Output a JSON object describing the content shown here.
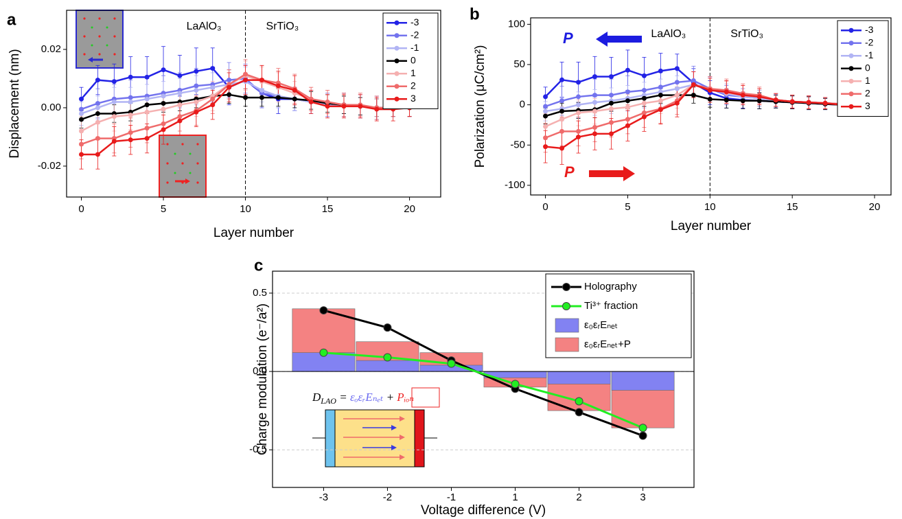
{
  "chart_data": [
    {
      "type": "line",
      "panel": "a",
      "xlabel": "Layer number",
      "ylabel": "Displacement (nm)",
      "regions": [
        "LaAlO₃",
        "SrTiO₃"
      ],
      "vline": 10,
      "x": [
        0,
        1,
        2,
        3,
        4,
        5,
        6,
        7,
        8,
        9,
        10,
        11,
        12,
        13,
        14,
        15,
        16,
        17,
        18,
        19,
        20
      ],
      "xlim": [
        -0.9,
        21.9
      ],
      "xticks": [
        0,
        5,
        10,
        15,
        20
      ],
      "ylim": [
        -0.0306,
        0.0334
      ],
      "yticks": [
        -0.02,
        {
          "value": 0,
          "label": "0.00"
        },
        0.02
      ],
      "legend": "upper right",
      "series": [
        {
          "name": "-3",
          "color": "#2323e6",
          "values": [
            0.003,
            0.0095,
            0.009,
            0.0105,
            0.0105,
            0.013,
            0.011,
            0.0125,
            0.0135,
            0.007,
            0.0095,
            0.005,
            0.003,
            0.003,
            0.002,
            0.001,
            0.001,
            0.0005,
            0,
            0,
            0
          ],
          "errors": [
            0.004,
            0.005,
            0.006,
            0.007,
            0.007,
            0.008,
            0.007,
            0.008,
            0.007,
            0.006,
            0.005,
            0.005,
            0.005,
            0.004,
            0.004,
            0.004,
            0.004,
            0.004,
            0.004,
            0.003,
            0.003
          ]
        },
        {
          "name": "-2",
          "color": "#7373ee",
          "values": [
            -0.0005,
            0.0015,
            0.003,
            0.0035,
            0.004,
            0.005,
            0.006,
            0.0075,
            0.008,
            0.0095,
            0.01,
            0.005,
            0.004,
            0.003,
            0.002,
            0.001,
            0.001,
            0.0005,
            0,
            0,
            0
          ],
          "errors": [
            0.004,
            0.005,
            0.005,
            0.006,
            0.006,
            0.006,
            0.006,
            0.006,
            0.006,
            0.006,
            0.005,
            0.005,
            0.004,
            0.004,
            0.004,
            0.004,
            0.004,
            0.003,
            0.003,
            0.003,
            0.003
          ]
        },
        {
          "name": "-1",
          "color": "#b1b4f4",
          "values": [
            -0.002,
            0,
            0.002,
            0.002,
            0.003,
            0.004,
            0.005,
            0.006,
            0.007,
            0.008,
            0.009,
            0.006,
            0.004,
            0.003,
            0.002,
            0.001,
            0.001,
            0.0005,
            0,
            0,
            0
          ],
          "errors": [
            0.004,
            0.004,
            0.005,
            0.005,
            0.005,
            0.005,
            0.005,
            0.005,
            0.005,
            0.005,
            0.005,
            0.004,
            0.004,
            0.004,
            0.004,
            0.004,
            0.003,
            0.003,
            0.003,
            0.003,
            0.003
          ]
        },
        {
          "name": "0",
          "color": "#000000",
          "values": [
            -0.004,
            -0.002,
            -0.002,
            -0.0015,
            0.001,
            0.0015,
            0.002,
            0.003,
            0.004,
            0.0045,
            0.0035,
            0.0035,
            0.0035,
            0.003,
            0.0025,
            0.0015,
            0.001,
            0.0005,
            0,
            0,
            0
          ],
          "errors": [
            0.003,
            0.003,
            0.003,
            0.003,
            0.003,
            0.003,
            0.003,
            0.003,
            0.003,
            0.003,
            0.003,
            0.003,
            0.003,
            0.003,
            0.003,
            0.003,
            0.003,
            0.003,
            0.003,
            0.003,
            0.003
          ]
        },
        {
          "name": "1",
          "color": "#f5b0b0",
          "values": [
            -0.008,
            -0.005,
            -0.003,
            -0.0025,
            -0.0015,
            -0.0005,
            0.001,
            0.002,
            0.004,
            0.008,
            0.011,
            0.009,
            0.007,
            0.005,
            0.003,
            0.002,
            0.001,
            0.0005,
            0,
            0,
            0
          ],
          "errors": [
            0.005,
            0.005,
            0.005,
            0.005,
            0.005,
            0.005,
            0.005,
            0.005,
            0.005,
            0.005,
            0.005,
            0.005,
            0.005,
            0.004,
            0.004,
            0.004,
            0.004,
            0.004,
            0.003,
            0.003,
            0.003
          ]
        },
        {
          "name": "2",
          "color": "#ef6b6b",
          "values": [
            -0.0125,
            -0.0105,
            -0.0105,
            -0.0085,
            -0.007,
            -0.0055,
            -0.003,
            -0.001,
            0.003,
            0.008,
            0.0115,
            0.0095,
            0.0085,
            0.0065,
            0.003,
            0.002,
            0.001,
            0.001,
            0,
            0,
            0
          ],
          "errors": [
            0.005,
            0.005,
            0.005,
            0.005,
            0.005,
            0.005,
            0.005,
            0.005,
            0.005,
            0.005,
            0.005,
            0.005,
            0.005,
            0.005,
            0.004,
            0.004,
            0.004,
            0.004,
            0.004,
            0.003,
            0.003
          ]
        },
        {
          "name": "3",
          "color": "#e81b1b",
          "values": [
            -0.016,
            -0.016,
            -0.0115,
            -0.011,
            -0.0105,
            -0.0075,
            -0.0045,
            -0.0015,
            0.001,
            0.007,
            0.0095,
            0.0095,
            0.0075,
            0.006,
            0.002,
            0.0005,
            0.0005,
            0.0005,
            -0.0005,
            -0.0005,
            0
          ],
          "errors": [
            0.005,
            0.005,
            0.005,
            0.005,
            0.005,
            0.005,
            0.005,
            0.005,
            0.005,
            0.005,
            0.005,
            0.005,
            0.005,
            0.005,
            0.004,
            0.004,
            0.004,
            0.004,
            0.004,
            0.004,
            0.003
          ]
        }
      ]
    },
    {
      "type": "line",
      "panel": "b",
      "xlabel": "Layer number",
      "ylabel": "Polarization (μC/cm²)",
      "regions": [
        "LaAlO₃",
        "SrTiO₃"
      ],
      "vline": 10,
      "annotations": [
        "P",
        "P"
      ],
      "x": [
        0,
        1,
        2,
        3,
        4,
        5,
        6,
        7,
        8,
        9,
        10,
        11,
        12,
        13,
        14,
        15,
        16,
        17,
        18,
        19,
        20
      ],
      "xlim": [
        -0.9,
        21.0
      ],
      "xticks": [
        0,
        5,
        10,
        15,
        20
      ],
      "ylim": [
        -112,
        108
      ],
      "yticks": [
        -100,
        -50,
        0,
        50,
        100
      ],
      "legend": "upper right",
      "series": [
        {
          "name": "-3",
          "color": "#2323e6",
          "values": [
            10,
            31,
            28,
            35,
            35,
            43,
            36,
            42,
            45,
            27,
            15,
            8,
            6,
            5,
            4,
            3,
            2,
            1,
            0,
            -1,
            -2
          ],
          "errors": [
            12,
            22,
            25,
            25,
            24,
            25,
            23,
            22,
            18,
            18,
            15,
            12,
            10,
            10,
            8,
            8,
            8,
            7,
            7,
            6,
            6
          ]
        },
        {
          "name": "-2",
          "color": "#7373ee",
          "values": [
            -2,
            5,
            10,
            12,
            12,
            16,
            18,
            22,
            28,
            30,
            20,
            12,
            10,
            8,
            6,
            4,
            3,
            2,
            1,
            0,
            -1
          ],
          "errors": [
            12,
            18,
            20,
            20,
            20,
            20,
            20,
            18,
            18,
            18,
            15,
            12,
            10,
            10,
            8,
            8,
            8,
            7,
            7,
            6,
            6
          ]
        },
        {
          "name": "-1",
          "color": "#b1b4f4",
          "values": [
            -8,
            -5,
            0,
            3,
            5,
            8,
            12,
            16,
            20,
            25,
            20,
            14,
            10,
            8,
            5,
            4,
            3,
            2,
            1,
            0,
            -1
          ],
          "errors": [
            12,
            15,
            16,
            16,
            16,
            16,
            16,
            16,
            16,
            16,
            14,
            12,
            10,
            10,
            8,
            8,
            8,
            7,
            7,
            6,
            6
          ]
        },
        {
          "name": "0",
          "color": "#000000",
          "values": [
            -14,
            -8,
            -7,
            -6,
            2,
            5,
            8,
            12,
            12,
            12,
            7,
            6,
            5,
            5,
            4,
            3,
            2,
            1,
            0,
            -1,
            -2
          ],
          "errors": [
            10,
            10,
            10,
            10,
            10,
            10,
            10,
            10,
            10,
            10,
            10,
            10,
            10,
            10,
            8,
            8,
            8,
            7,
            7,
            6,
            6
          ]
        },
        {
          "name": "1",
          "color": "#f5b0b0",
          "values": [
            -27,
            -18,
            -10,
            -8,
            -5,
            -3,
            2,
            5,
            12,
            25,
            20,
            15,
            12,
            10,
            6,
            4,
            3,
            2,
            1,
            0,
            -1
          ],
          "errors": [
            16,
            16,
            16,
            16,
            16,
            16,
            16,
            16,
            16,
            16,
            15,
            14,
            12,
            10,
            8,
            8,
            8,
            7,
            7,
            6,
            6
          ]
        },
        {
          "name": "2",
          "color": "#ef6b6b",
          "values": [
            -41,
            -33,
            -33,
            -28,
            -22,
            -18,
            -10,
            -5,
            5,
            25,
            20,
            18,
            14,
            12,
            6,
            4,
            3,
            2,
            1,
            0,
            -1
          ],
          "errors": [
            18,
            18,
            18,
            18,
            18,
            18,
            18,
            18,
            17,
            16,
            15,
            14,
            12,
            10,
            8,
            8,
            8,
            7,
            7,
            6,
            6
          ]
        },
        {
          "name": "3",
          "color": "#e81b1b",
          "values": [
            -52,
            -54,
            -40,
            -36,
            -36,
            -26,
            -15,
            -6,
            2,
            25,
            18,
            16,
            12,
            10,
            6,
            4,
            3,
            2,
            0,
            -2,
            -2
          ],
          "errors": [
            20,
            20,
            20,
            20,
            19,
            19,
            18,
            18,
            17,
            16,
            15,
            14,
            12,
            10,
            8,
            8,
            8,
            7,
            7,
            6,
            6
          ]
        }
      ]
    },
    {
      "type": "combo",
      "panel": "c",
      "xlabel": "Voltage difference (V)",
      "ylabel": "Charge modulation (e⁻/a²)",
      "categories": [
        "-3",
        "-2",
        "-1",
        "1",
        "2",
        "3"
      ],
      "ylim": [
        -0.74,
        0.64
      ],
      "yticks": [
        -0.5,
        {
          "value": 0,
          "label": "0.0"
        },
        0.5
      ],
      "grid": true,
      "legend": "upper right",
      "equation": [
        "D",
        "LAO",
        " = ",
        "εₒεᵣEₙₑₜ",
        " + ",
        "Pᵢₒₙ"
      ],
      "series": [
        {
          "name": "Holography",
          "type": "line",
          "color": "#000000",
          "values": [
            0.39,
            0.28,
            0.07,
            -0.11,
            -0.26,
            -0.41
          ]
        },
        {
          "name": "Ti³⁺ fraction",
          "type": "line",
          "color": "#22ee22",
          "values": [
            0.12,
            0.09,
            0.05,
            -0.08,
            -0.19,
            -0.36
          ]
        },
        {
          "name": "ε₀εᵣEₙₑₜ",
          "type": "bar",
          "color": "#8282f2",
          "values": [
            0.12,
            0.07,
            0.04,
            -0.04,
            -0.08,
            -0.12
          ]
        },
        {
          "name": "ε₀εᵣEₙₑₜ+P",
          "type": "bar",
          "color": "#f48282",
          "values": [
            0.4,
            0.19,
            0.12,
            -0.1,
            -0.25,
            -0.36
          ]
        }
      ]
    }
  ]
}
